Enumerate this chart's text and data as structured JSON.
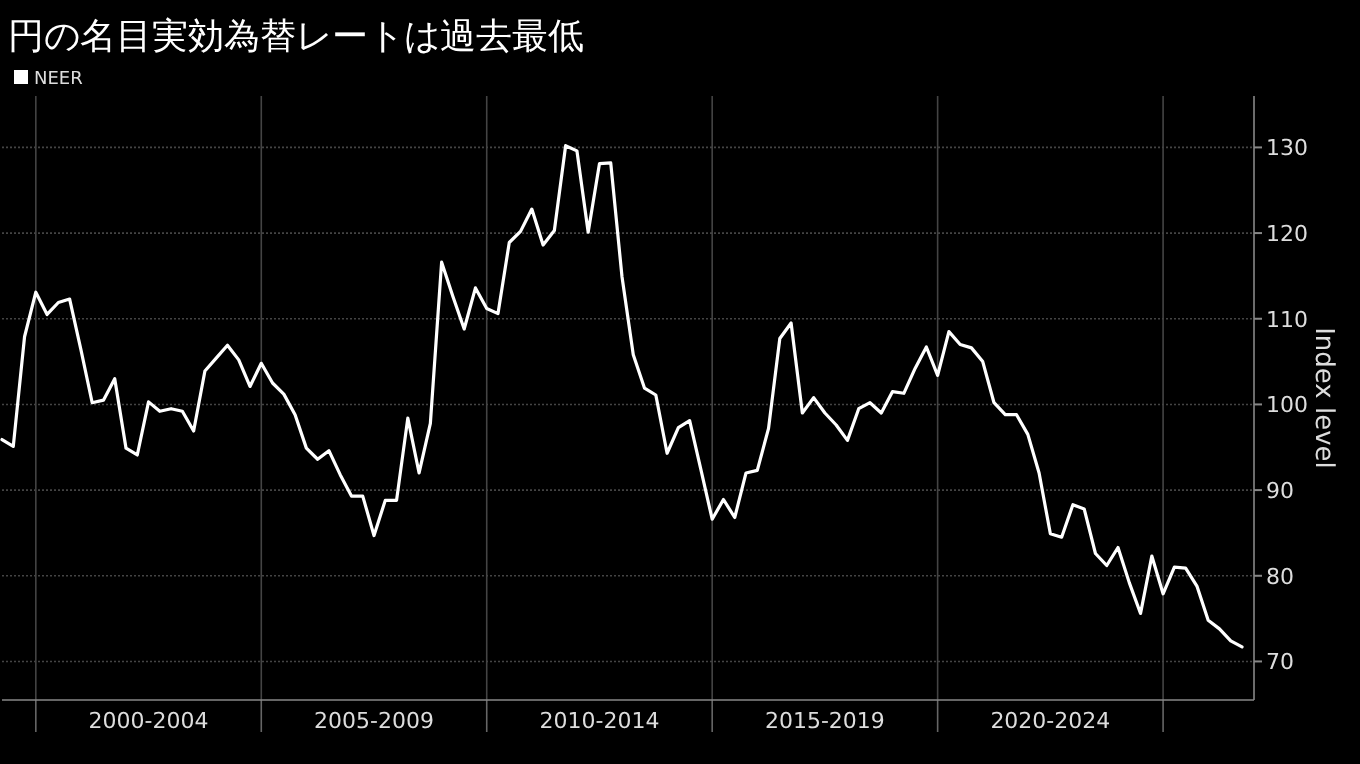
{
  "chart_data": {
    "type": "line",
    "title": "円の名目実効為替レートは過去最低",
    "ylabel": "Index level",
    "legend": "top left",
    "grid": true,
    "categories": [
      null,
      null,
      null,
      null,
      null,
      null,
      null,
      null,
      null,
      null,
      null,
      null,
      null,
      "2000-2004",
      null,
      null,
      null,
      null,
      null,
      null,
      null,
      null,
      null,
      null,
      null,
      null,
      null,
      null,
      null,
      null,
      null,
      null,
      null,
      "2005-2009",
      null,
      null,
      null,
      null,
      null,
      null,
      null,
      null,
      null,
      null,
      null,
      null,
      null,
      null,
      null,
      null,
      null,
      null,
      null,
      "2010-2014",
      null,
      null,
      null,
      null,
      null,
      null,
      null,
      null,
      null,
      null,
      null,
      null,
      null,
      null,
      null,
      null,
      null,
      null,
      null,
      "2015-2019",
      null,
      null,
      null,
      null,
      null,
      null,
      null,
      null,
      null,
      null,
      null,
      null,
      null,
      null,
      null,
      null,
      null,
      null,
      null,
      "2020-2024",
      null,
      null,
      null,
      null,
      null,
      null,
      null,
      null,
      null,
      null,
      null,
      null,
      null,
      null,
      null,
      null,
      null
    ],
    "series": [
      {
        "name": "NEER",
        "color": "#ffffff",
        "values": [
          95.9,
          95.1,
          107.9,
          113.1,
          110.5,
          111.9,
          112.3,
          106.4,
          100.2,
          100.5,
          103.0,
          94.9,
          94.1,
          100.3,
          99.2,
          99.5,
          99.2,
          96.9,
          103.9,
          105.4,
          106.9,
          105.2,
          102.1,
          104.8,
          102.5,
          101.2,
          98.8,
          94.9,
          93.6,
          94.6,
          91.8,
          89.3,
          89.3,
          84.7,
          88.8,
          88.8,
          98.4,
          92.0,
          97.8,
          116.6,
          112.6,
          108.8,
          113.6,
          111.2,
          110.6,
          118.9,
          120.2,
          122.8,
          118.6,
          120.3,
          130.2,
          129.6,
          120.1,
          128.1,
          128.2,
          114.9,
          105.8,
          101.9,
          101.1,
          94.3,
          97.3,
          98.1,
          92.4,
          86.6,
          88.9,
          86.8,
          92.0,
          92.3,
          97.2,
          107.7,
          109.5,
          99.0,
          100.8,
          99.0,
          97.6,
          95.8,
          99.5,
          100.2,
          99.0,
          101.5,
          101.3,
          104.2,
          106.7,
          103.4,
          108.5,
          107.0,
          106.6,
          105.0,
          100.2,
          98.8,
          98.8,
          96.5,
          92.0,
          84.9,
          84.5,
          88.3,
          87.8,
          82.6,
          81.2,
          83.3,
          79.2,
          75.6,
          82.3,
          77.9,
          81.0,
          80.9,
          78.8,
          74.8,
          73.8,
          72.4,
          71.7
        ]
      }
    ],
    "ylim": [
      65.5,
      136
    ],
    "yticks": [
      70,
      80,
      90,
      100,
      110,
      120,
      130
    ]
  }
}
